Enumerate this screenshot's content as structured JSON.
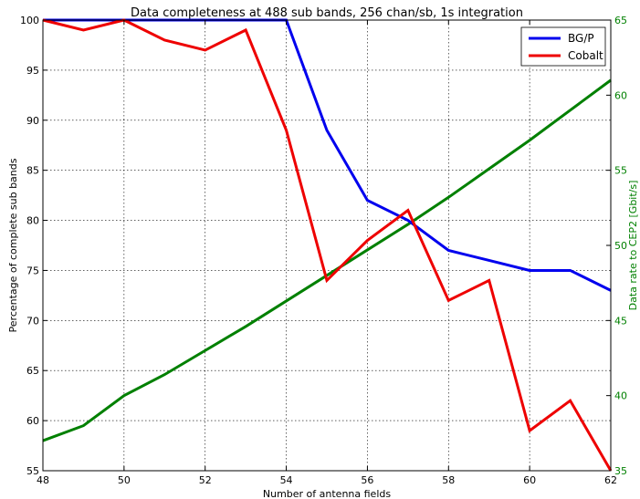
{
  "chart_data": {
    "type": "line",
    "title": "Data completeness at 488 sub bands, 256 chan/sb, 1s integration",
    "xlabel": "Number of antenna fields",
    "ylabel": "Percentage of complete sub bands",
    "y2label": "Data rate to CEP2 [Gbit/s]",
    "xlim": [
      48,
      62
    ],
    "ylim": [
      55,
      100
    ],
    "y2lim": [
      35,
      65
    ],
    "x_ticks": [
      "48",
      "50",
      "52",
      "54",
      "56",
      "58",
      "60",
      "62"
    ],
    "y_ticks": [
      "55",
      "60",
      "65",
      "70",
      "75",
      "80",
      "85",
      "90",
      "95",
      "100"
    ],
    "y2_ticks": [
      "35",
      "40",
      "45",
      "50",
      "55",
      "60",
      "65"
    ],
    "grid": true,
    "legend_position": "top-right",
    "series": [
      {
        "name": "BG/P",
        "axis": "left",
        "color": "#0000ee",
        "x": [
          48,
          49,
          50,
          51,
          52,
          53,
          54,
          55,
          56,
          57,
          58,
          59,
          60,
          61,
          62
        ],
        "y": [
          100,
          100,
          100,
          100,
          100,
          100,
          100,
          89,
          82,
          80,
          77,
          76,
          75,
          75,
          73
        ]
      },
      {
        "name": "Cobalt",
        "axis": "left",
        "color": "#ee0000",
        "x": [
          48,
          49,
          50,
          51,
          52,
          53,
          54,
          55,
          56,
          57,
          58,
          59,
          60,
          61,
          62
        ],
        "y": [
          100,
          99,
          100,
          98,
          97,
          99,
          89,
          74,
          78,
          81,
          72,
          74,
          59,
          62,
          55
        ]
      },
      {
        "axis": "right",
        "color": "#008000",
        "x": [
          48,
          49,
          50,
          51,
          52,
          53,
          54,
          55,
          56,
          57,
          58,
          59,
          60,
          61,
          62
        ],
        "y": [
          37.0,
          38.0,
          40.0,
          41.4,
          43.0,
          44.6,
          46.3,
          48.0,
          49.7,
          51.4,
          53.2,
          55.1,
          57.0,
          59.0,
          61.0
        ]
      }
    ]
  }
}
